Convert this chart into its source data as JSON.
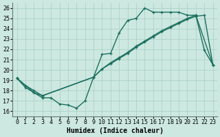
{
  "xlabel": "Humidex (Indice chaleur)",
  "xlim": [
    -0.5,
    23.5
  ],
  "ylim": [
    15.5,
    26.5
  ],
  "xticks": [
    0,
    1,
    2,
    3,
    4,
    5,
    6,
    7,
    8,
    9,
    10,
    11,
    12,
    13,
    14,
    15,
    16,
    17,
    18,
    19,
    20,
    21,
    22,
    23
  ],
  "yticks": [
    16,
    17,
    18,
    19,
    20,
    21,
    22,
    23,
    24,
    25,
    26
  ],
  "bg_color": "#cce8e0",
  "line_color": "#1a6e5e",
  "line1_x": [
    0,
    1,
    2,
    3,
    4,
    5,
    6,
    7,
    8,
    9,
    10,
    11,
    12,
    13,
    14,
    15,
    16,
    17,
    18,
    19,
    20,
    21,
    22,
    23
  ],
  "line1_y": [
    19.2,
    18.3,
    17.8,
    17.3,
    17.3,
    16.7,
    16.6,
    16.3,
    17.0,
    19.3,
    21.5,
    21.6,
    23.6,
    24.8,
    25.0,
    26.0,
    25.6,
    25.6,
    25.6,
    25.6,
    25.3,
    25.3,
    21.9,
    20.5
  ],
  "line2_x": [
    0,
    1,
    2,
    3,
    9,
    10,
    11,
    12,
    13,
    14,
    15,
    16,
    17,
    18,
    19,
    20,
    21,
    23
  ],
  "line2_y": [
    19.2,
    18.5,
    18.0,
    17.5,
    19.3,
    20.1,
    20.7,
    21.2,
    21.7,
    22.3,
    22.8,
    23.3,
    23.8,
    24.2,
    24.6,
    25.0,
    25.3,
    20.5
  ],
  "line3_x": [
    0,
    2,
    3,
    9,
    10,
    11,
    12,
    13,
    14,
    15,
    16,
    17,
    18,
    19,
    20,
    21,
    22,
    23
  ],
  "line3_y": [
    19.2,
    17.8,
    17.5,
    19.3,
    20.1,
    20.6,
    21.1,
    21.6,
    22.2,
    22.7,
    23.2,
    23.7,
    24.1,
    24.5,
    24.9,
    25.2,
    25.3,
    20.5
  ],
  "grid_color": "#a8cec4",
  "marker": "+",
  "markersize": 3.5,
  "linewidth": 1.0,
  "label_fontsize": 7,
  "tick_fontsize": 6
}
